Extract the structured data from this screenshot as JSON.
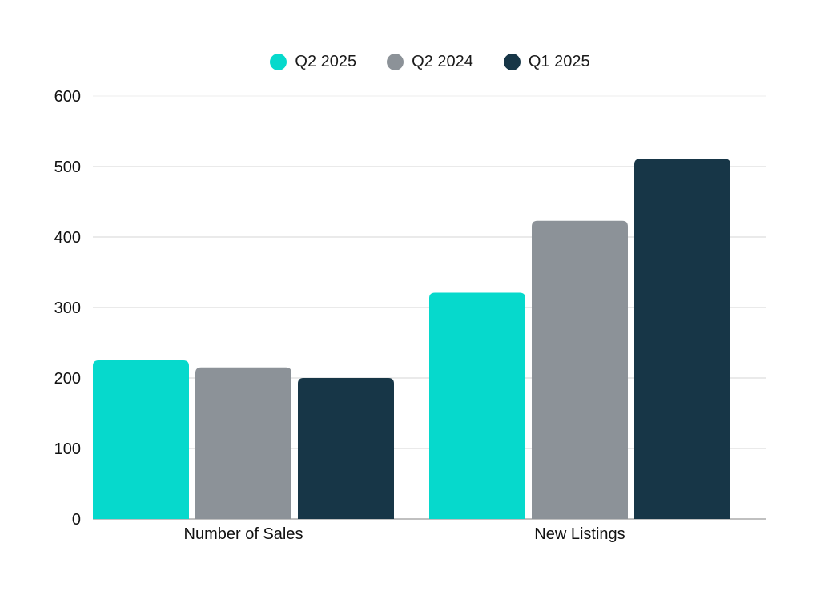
{
  "chart_data": {
    "type": "bar",
    "categories": [
      "Number of Sales",
      "New Listings"
    ],
    "series": [
      {
        "name": "Q2 2025",
        "color": "#06d9cc",
        "values": [
          225,
          321
        ]
      },
      {
        "name": "Q2 2024",
        "color": "#8c9298",
        "values": [
          215,
          423
        ]
      },
      {
        "name": "Q1 2025",
        "color": "#173647",
        "values": [
          200,
          511
        ]
      }
    ],
    "ylim": [
      0,
      600
    ],
    "yticks": [
      0,
      100,
      200,
      300,
      400,
      500,
      600
    ],
    "grid": true,
    "legend_position": "top-center",
    "title": "",
    "xlabel": "",
    "ylabel": ""
  }
}
